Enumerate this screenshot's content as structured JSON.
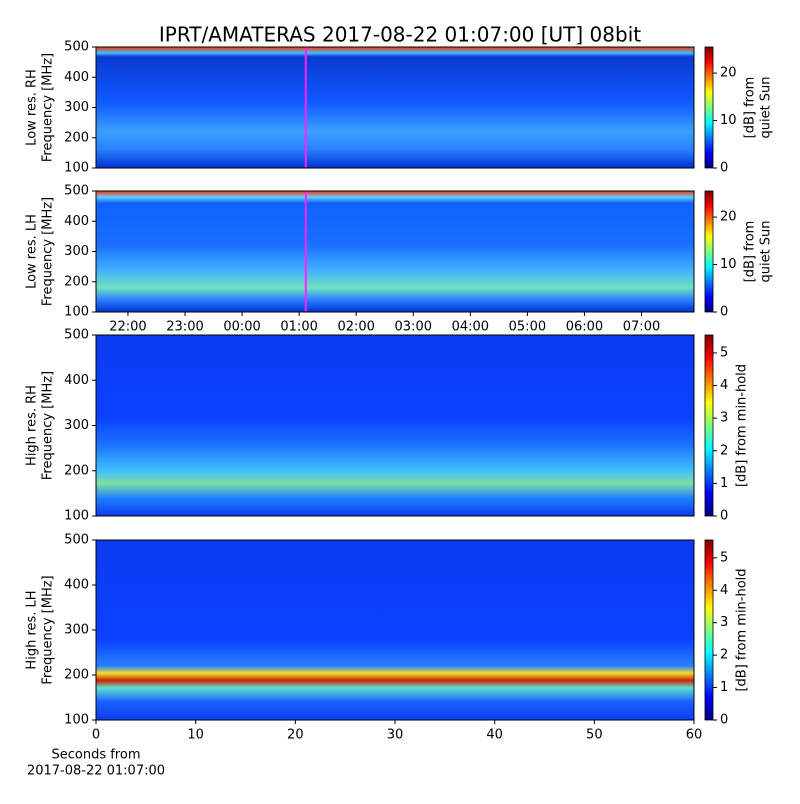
{
  "title": "IPRT/AMATERAS 2017-08-22 01:07:00 [UT]   08bit",
  "chart_data": [
    {
      "type": "heatmap",
      "ylabel": [
        "Low res. RH",
        "Frequency [MHz]"
      ],
      "ylim": [
        100,
        500
      ],
      "yticks": [
        100,
        200,
        300,
        400,
        500
      ],
      "xlim": [
        -2.56,
        7.92
      ],
      "marker_time": 1.1167,
      "clim": [
        0,
        25.5
      ],
      "cticks": [
        0,
        10,
        20
      ],
      "clabel": [
        "[dB] from",
        "quiet Sun"
      ]
    },
    {
      "type": "heatmap",
      "ylabel": [
        "Low res. LH",
        "Frequency [MHz]"
      ],
      "ylim": [
        100,
        500
      ],
      "yticks": [
        100,
        200,
        300,
        400,
        500
      ],
      "xlim": [
        -2.56,
        7.92
      ],
      "marker_time": 1.1167,
      "xticks": [
        {
          "value": -2,
          "label": "22:00"
        },
        {
          "value": -1,
          "label": "23:00"
        },
        {
          "value": 0,
          "label": "00:00"
        },
        {
          "value": 1,
          "label": "01:00"
        },
        {
          "value": 2,
          "label": "02:00"
        },
        {
          "value": 3,
          "label": "03:00"
        },
        {
          "value": 4,
          "label": "04:00"
        },
        {
          "value": 5,
          "label": "05:00"
        },
        {
          "value": 6,
          "label": "06:00"
        },
        {
          "value": 7,
          "label": "07:00"
        }
      ],
      "clim": [
        0,
        25.5
      ],
      "cticks": [
        0,
        10,
        20
      ],
      "clabel": [
        "[dB] from",
        "quiet Sun"
      ]
    },
    {
      "type": "heatmap",
      "ylabel": [
        "High res. RH",
        "Frequency [MHz]"
      ],
      "ylim": [
        100,
        500
      ],
      "yticks": [
        100,
        200,
        300,
        400,
        500
      ],
      "xlim": [
        0,
        60
      ],
      "clim": [
        0,
        5.55
      ],
      "cticks": [
        0,
        1,
        2,
        3,
        4,
        5
      ],
      "clabel": [
        "[dB] from min-hold"
      ]
    },
    {
      "type": "heatmap",
      "ylabel": [
        "High res. LH",
        "Frequency [MHz]"
      ],
      "ylim": [
        100,
        500
      ],
      "yticks": [
        100,
        200,
        300,
        400,
        500
      ],
      "xlim": [
        0,
        60
      ],
      "xticks": [
        0,
        10,
        20,
        30,
        40,
        50,
        60
      ],
      "xlabel": [
        "Seconds from",
        "2017-08-22 01:07:00"
      ],
      "clim": [
        0,
        5.55
      ],
      "cticks": [
        0,
        1,
        2,
        3,
        4,
        5
      ],
      "clabel": [
        "[dB] from min-hold"
      ]
    }
  ]
}
